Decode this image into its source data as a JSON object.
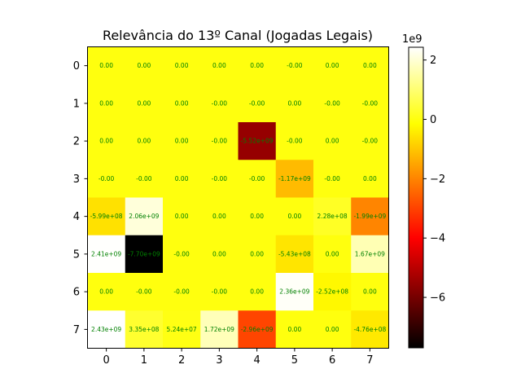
{
  "chart_data": {
    "type": "heatmap",
    "title": "Relevância do 13º Canal (Jogadas Legais)",
    "colormap": "hot",
    "x_ticks": [
      "0",
      "1",
      "2",
      "3",
      "4",
      "5",
      "6",
      "7"
    ],
    "y_ticks": [
      "0",
      "1",
      "2",
      "3",
      "4",
      "5",
      "6",
      "7"
    ],
    "vmin": -7700000000.0,
    "vmax": 2430000000.0,
    "values": [
      [
        0,
        0,
        0,
        0,
        0,
        0,
        0,
        0
      ],
      [
        0,
        0,
        0,
        0,
        0,
        0,
        0,
        0
      ],
      [
        0,
        0,
        0,
        0,
        -5520000000.0,
        0,
        0,
        0
      ],
      [
        0,
        0,
        0,
        0,
        0,
        -1170000000.0,
        0,
        0
      ],
      [
        -599000000.0,
        2060000000.0,
        0,
        0,
        0,
        0,
        228000000.0,
        -1990000000.0
      ],
      [
        2410000000.0,
        -7700000000.0,
        0,
        0,
        0,
        -543000000.0,
        0,
        1670000000.0
      ],
      [
        0,
        0,
        0,
        0,
        0,
        2360000000.0,
        -252000000.0,
        0
      ],
      [
        2430000000.0,
        335000000.0,
        52400000.0,
        1720000000.0,
        -2960000000.0,
        0,
        0,
        -476000000.0
      ]
    ],
    "labels": [
      [
        "0.00",
        "0.00",
        "0.00",
        "0.00",
        "0.00",
        "-0.00",
        "0.00",
        "0.00"
      ],
      [
        "0.00",
        "0.00",
        "0.00",
        "-0.00",
        "-0.00",
        "0.00",
        "-0.00",
        "-0.00"
      ],
      [
        "0.00",
        "0.00",
        "0.00",
        "-0.00",
        "-5.52e+09",
        "-0.00",
        "0.00",
        "-0.00"
      ],
      [
        "-0.00",
        "-0.00",
        "0.00",
        "-0.00",
        "-0.00",
        "-1.17e+09",
        "-0.00",
        "0.00"
      ],
      [
        "-5.99e+08",
        "2.06e+09",
        "0.00",
        "0.00",
        "0.00",
        "0.00",
        "2.28e+08",
        "-1.99e+09"
      ],
      [
        "2.41e+09",
        "-7.70e+09",
        "-0.00",
        "0.00",
        "0.00",
        "-5.43e+08",
        "0.00",
        "1.67e+09"
      ],
      [
        "0.00",
        "-0.00",
        "-0.00",
        "-0.00",
        "0.00",
        "2.36e+09",
        "-2.52e+08",
        "0.00"
      ],
      [
        "2.43e+09",
        "3.35e+08",
        "5.24e+07",
        "1.72e+09",
        "-2.96e+09",
        "0.00",
        "0.00",
        "-4.76e+08"
      ]
    ],
    "cell_label_color": "#008000",
    "colorbar": {
      "ticks": [
        2,
        0,
        -2,
        -4,
        -6
      ],
      "tick_labels": [
        "2",
        "0",
        "−2",
        "−4",
        "−6"
      ],
      "exponent_label": "1e9",
      "scale": 1000000000.0
    }
  }
}
